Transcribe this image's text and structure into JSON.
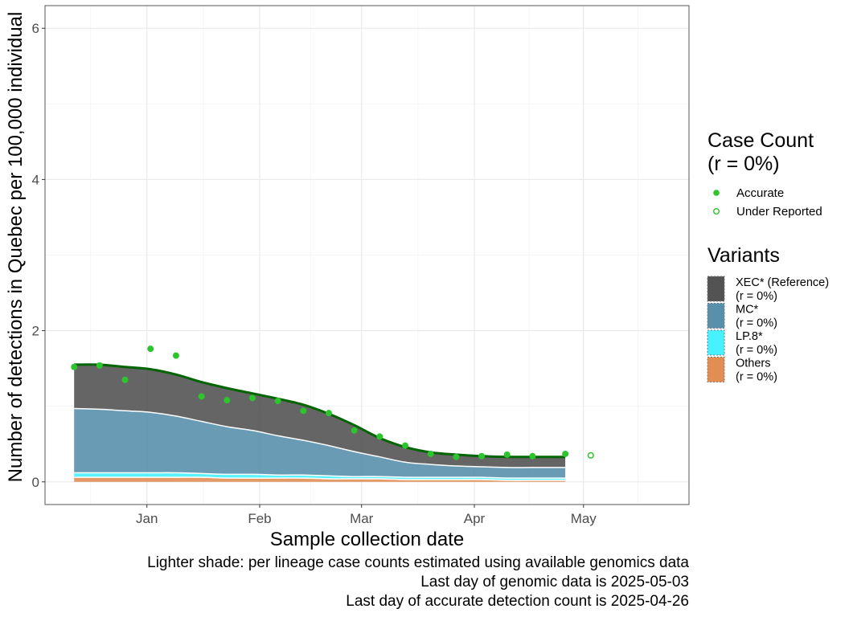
{
  "chart_data": {
    "type": "area",
    "title": "",
    "xlabel": "Sample collection date",
    "ylabel": "Number of detections in Quebec per 100,000 individual",
    "ylim": [
      -0.3,
      6.3
    ],
    "xlim": [
      "2024-12-04",
      "2025-05-30"
    ],
    "x_ticks": [
      {
        "date": "2025-01-01",
        "label": "Jan"
      },
      {
        "date": "2025-02-01",
        "label": "Feb"
      },
      {
        "date": "2025-03-01",
        "label": "Mar"
      },
      {
        "date": "2025-04-01",
        "label": "Apr"
      },
      {
        "date": "2025-05-01",
        "label": "May"
      }
    ],
    "y_ticks": [
      0,
      2,
      4,
      6
    ],
    "grid": true,
    "legend_position": "right",
    "x": [
      "2024-12-12",
      "2024-12-19",
      "2024-12-26",
      "2025-01-02",
      "2025-01-09",
      "2025-01-16",
      "2025-01-23",
      "2025-01-30",
      "2025-02-06",
      "2025-02-13",
      "2025-02-20",
      "2025-02-27",
      "2025-03-06",
      "2025-03-13",
      "2025-03-20",
      "2025-03-27",
      "2025-04-03",
      "2025-04-10",
      "2025-04-17",
      "2025-04-26"
    ],
    "series": [
      {
        "name": "Others",
        "values": [
          0.06,
          0.06,
          0.06,
          0.06,
          0.06,
          0.06,
          0.05,
          0.05,
          0.05,
          0.05,
          0.04,
          0.04,
          0.04,
          0.03,
          0.03,
          0.03,
          0.03,
          0.02,
          0.02,
          0.02
        ],
        "color": "#E0884A"
      },
      {
        "name": "LP.8*",
        "values": [
          0.06,
          0.06,
          0.06,
          0.06,
          0.06,
          0.05,
          0.05,
          0.05,
          0.04,
          0.04,
          0.04,
          0.03,
          0.03,
          0.03,
          0.03,
          0.03,
          0.03,
          0.03,
          0.03,
          0.03
        ],
        "color": "#3DF0FF"
      },
      {
        "name": "MC*",
        "values": [
          0.85,
          0.84,
          0.82,
          0.8,
          0.75,
          0.69,
          0.63,
          0.58,
          0.52,
          0.46,
          0.4,
          0.33,
          0.26,
          0.2,
          0.17,
          0.15,
          0.14,
          0.14,
          0.14,
          0.14
        ],
        "color": "#4F8AA8"
      },
      {
        "name": "XEC* (Reference)",
        "values": [
          0.58,
          0.59,
          0.58,
          0.57,
          0.55,
          0.52,
          0.51,
          0.49,
          0.49,
          0.47,
          0.42,
          0.35,
          0.25,
          0.2,
          0.16,
          0.15,
          0.14,
          0.14,
          0.14,
          0.14
        ],
        "color": "#4A4A4A"
      }
    ],
    "points_accurate": {
      "x": [
        "2024-12-12",
        "2024-12-19",
        "2024-12-26",
        "2025-01-02",
        "2025-01-09",
        "2025-01-16",
        "2025-01-23",
        "2025-01-30",
        "2025-02-06",
        "2025-02-13",
        "2025-02-20",
        "2025-02-27",
        "2025-03-06",
        "2025-03-13",
        "2025-03-20",
        "2025-03-27",
        "2025-04-03",
        "2025-04-10",
        "2025-04-17",
        "2025-04-26"
      ],
      "y": [
        1.52,
        1.54,
        1.35,
        1.76,
        1.67,
        1.13,
        1.08,
        1.11,
        1.07,
        0.94,
        0.91,
        0.68,
        0.6,
        0.48,
        0.37,
        0.33,
        0.34,
        0.36,
        0.34,
        0.37
      ]
    },
    "points_under_reported": {
      "x": [
        "2025-05-03"
      ],
      "y": [
        0.35
      ]
    },
    "colors": {
      "total_line": "#006400",
      "points": "#2DC52D",
      "divider": "#ffffff",
      "panel_border": "#555555",
      "grid_major": "#EBEBEB",
      "grid_minor": "#F5F5F5"
    }
  },
  "legend_case": {
    "title_line1": "Case Count",
    "title_line2": "(r = 0%)",
    "items": [
      "Accurate",
      "Under Reported"
    ]
  },
  "legend_variants": {
    "title": "Variants",
    "items": [
      {
        "name": "XEC* (Reference)",
        "r": "(r = 0%)",
        "color": "#4A4A4A"
      },
      {
        "name": "MC*",
        "r": "(r = 0%)",
        "color": "#4F8AA8"
      },
      {
        "name": "LP.8*",
        "r": "(r = 0%)",
        "color": "#3DF0FF"
      },
      {
        "name": "Others",
        "r": "(r = 0%)",
        "color": "#E0884A"
      }
    ]
  },
  "caption": {
    "line1": "Lighter shade: per lineage case counts estimated using available genomics data",
    "line2": "Last day of genomic data is 2025-05-03",
    "line3": "Last day of accurate detection count is 2025-04-26"
  }
}
